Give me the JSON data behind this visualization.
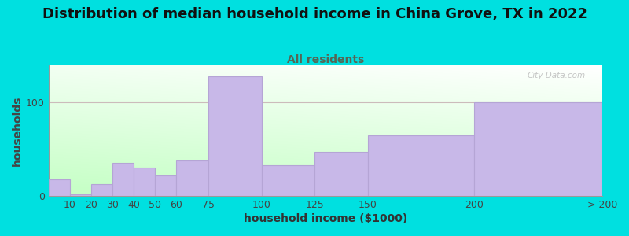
{
  "title": "Distribution of median household income in China Grove, TX in 2022",
  "subtitle": "All residents",
  "xlabel": "household income ($1000)",
  "ylabel": "households",
  "categories": [
    "10",
    "20",
    "30",
    "40",
    "50",
    "60",
    "75",
    "100",
    "125",
    "150",
    "200",
    "> 200"
  ],
  "bin_lefts": [
    0,
    10,
    20,
    30,
    40,
    50,
    60,
    75,
    100,
    125,
    150,
    200
  ],
  "bin_rights": [
    10,
    20,
    30,
    40,
    50,
    60,
    75,
    100,
    125,
    150,
    200,
    260
  ],
  "values": [
    18,
    2,
    13,
    35,
    30,
    22,
    38,
    128,
    33,
    47,
    65,
    100
  ],
  "bar_color": "#c8b8e8",
  "bar_edgecolor": "#b5a5d5",
  "background_outer": "#00e0e0",
  "plot_bg_left_bottom": "#d8f0d8",
  "plot_bg_right_top": "#f8f8f8",
  "title_fontsize": 13,
  "subtitle_fontsize": 10,
  "axis_label_fontsize": 10,
  "tick_fontsize": 9,
  "ylim": [
    0,
    140
  ],
  "yticks": [
    0,
    100
  ],
  "xtick_positions": [
    10,
    20,
    30,
    40,
    50,
    60,
    75,
    100,
    125,
    150,
    200,
    260
  ],
  "xtick_labels": [
    "10",
    "20",
    "30",
    "40",
    "50",
    "60",
    "75",
    "100",
    "125",
    "150",
    "200",
    "> 200"
  ],
  "watermark": "City-Data.com"
}
